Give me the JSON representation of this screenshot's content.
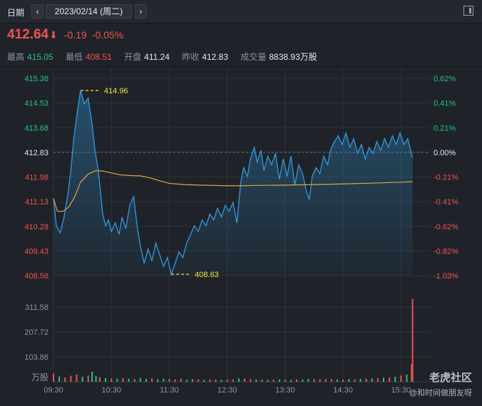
{
  "toolbar": {
    "label": "日期",
    "prev_icon": "chevron-left-icon",
    "next_icon": "chevron-right-icon",
    "date": "2023/02/14 (周二)",
    "expand_icon": "panel-expand-icon"
  },
  "quote": {
    "price": "412.64",
    "direction_icon": "arrow-down-icon",
    "change": "-0.19",
    "change_pct": "-0.05%"
  },
  "stats": [
    {
      "label": "最高",
      "value": "415.05",
      "tone": "green"
    },
    {
      "label": "最低",
      "value": "408.51",
      "tone": "red"
    },
    {
      "label": "开盘",
      "value": "411.24",
      "tone": "plain"
    },
    {
      "label": "昨收",
      "value": "412.83",
      "tone": "plain"
    },
    {
      "label": "成交量",
      "value": "8838.93万股",
      "tone": "plain"
    }
  ],
  "watermark": {
    "brand": "老虎社区",
    "slogan": "@和时间做朋友呀"
  },
  "colors": {
    "up": "#ef5350",
    "down": "#26c281",
    "price_line": "#2f9be0",
    "avg_line": "#e8a23e",
    "marker": "#f7e23a"
  },
  "chart_data": {
    "type": "line",
    "title": "",
    "x_ticks": [
      "09:30",
      "10:30",
      "11:30",
      "12:30",
      "13:30",
      "14:30",
      "15:30"
    ],
    "x_range": [
      "09:30",
      "16:00"
    ],
    "y_ticks_left": [
      "415.38",
      "414.53",
      "413.68",
      "412.83",
      "411.98",
      "411.13",
      "410.28",
      "409.43",
      "408.58"
    ],
    "y_ticks_right": [
      "0.62%",
      "0.41%",
      "0.21%",
      "0.00%",
      "-0.21%",
      "-0.41%",
      "-0.62%",
      "-0.82%",
      "-1.03%"
    ],
    "ylim": [
      408.58,
      415.38
    ],
    "prev_close": 412.83,
    "annotations": [
      {
        "label": "414.96",
        "time": "09:58",
        "value": 414.96
      },
      {
        "label": "408.63",
        "time": "11:32",
        "value": 408.63
      }
    ],
    "series": [
      {
        "role": "price",
        "points": [
          [
            "09:30",
            411.24
          ],
          [
            "09:33",
            410.3
          ],
          [
            "09:37",
            410.05
          ],
          [
            "09:41",
            410.6
          ],
          [
            "09:45",
            411.4
          ],
          [
            "09:48",
            412.2
          ],
          [
            "09:51",
            413.3
          ],
          [
            "09:55",
            414.3
          ],
          [
            "09:58",
            414.96
          ],
          [
            "10:02",
            414.5
          ],
          [
            "10:06",
            414.7
          ],
          [
            "10:10",
            413.8
          ],
          [
            "10:13",
            412.9
          ],
          [
            "10:16",
            412.3
          ],
          [
            "10:18",
            411.7
          ],
          [
            "10:21",
            410.7
          ],
          [
            "10:24",
            410.3
          ],
          [
            "10:27",
            410.5
          ],
          [
            "10:30",
            410.1
          ],
          [
            "10:34",
            410.4
          ],
          [
            "10:38",
            410.0
          ],
          [
            "10:41",
            410.6
          ],
          [
            "10:45",
            410.2
          ],
          [
            "10:49",
            411.0
          ],
          [
            "10:53",
            411.3
          ],
          [
            "10:57",
            410.2
          ],
          [
            "11:00",
            409.6
          ],
          [
            "11:04",
            409.0
          ],
          [
            "11:08",
            409.5
          ],
          [
            "11:12",
            409.1
          ],
          [
            "11:16",
            409.7
          ],
          [
            "11:20",
            409.3
          ],
          [
            "11:24",
            408.9
          ],
          [
            "11:28",
            409.2
          ],
          [
            "11:32",
            408.63
          ],
          [
            "11:36",
            409.0
          ],
          [
            "11:40",
            409.4
          ],
          [
            "11:44",
            409.2
          ],
          [
            "11:48",
            409.7
          ],
          [
            "11:52",
            410.0
          ],
          [
            "11:56",
            410.3
          ],
          [
            "12:00",
            410.1
          ],
          [
            "12:04",
            410.5
          ],
          [
            "12:08",
            410.3
          ],
          [
            "12:12",
            410.7
          ],
          [
            "12:16",
            410.5
          ],
          [
            "12:20",
            410.9
          ],
          [
            "12:24",
            410.6
          ],
          [
            "12:28",
            411.0
          ],
          [
            "12:32",
            410.8
          ],
          [
            "12:36",
            411.1
          ],
          [
            "12:40",
            410.4
          ],
          [
            "12:44",
            411.8
          ],
          [
            "12:47",
            412.3
          ],
          [
            "12:51",
            412.0
          ],
          [
            "12:54",
            412.6
          ],
          [
            "12:58",
            413.0
          ],
          [
            "13:01",
            412.5
          ],
          [
            "13:05",
            412.9
          ],
          [
            "13:08",
            412.2
          ],
          [
            "13:12",
            412.7
          ],
          [
            "13:16",
            412.4
          ],
          [
            "13:20",
            412.8
          ],
          [
            "13:24",
            411.9
          ],
          [
            "13:28",
            412.6
          ],
          [
            "13:32",
            412.0
          ],
          [
            "13:36",
            412.7
          ],
          [
            "13:40",
            411.7
          ],
          [
            "13:44",
            412.4
          ],
          [
            "13:48",
            412.1
          ],
          [
            "13:52",
            411.5
          ],
          [
            "13:55",
            411.2
          ],
          [
            "13:58",
            412.0
          ],
          [
            "14:02",
            412.3
          ],
          [
            "14:06",
            412.1
          ],
          [
            "14:10",
            412.7
          ],
          [
            "14:14",
            412.4
          ],
          [
            "14:17",
            412.9
          ],
          [
            "14:21",
            413.2
          ],
          [
            "14:25",
            413.4
          ],
          [
            "14:29",
            413.1
          ],
          [
            "14:33",
            413.5
          ],
          [
            "14:37",
            413.0
          ],
          [
            "14:41",
            413.3
          ],
          [
            "14:45",
            412.8
          ],
          [
            "14:49",
            413.1
          ],
          [
            "14:53",
            412.6
          ],
          [
            "14:57",
            413.0
          ],
          [
            "15:01",
            412.8
          ],
          [
            "15:05",
            413.2
          ],
          [
            "15:09",
            412.9
          ],
          [
            "15:13",
            413.3
          ],
          [
            "15:17",
            413.0
          ],
          [
            "15:21",
            413.4
          ],
          [
            "15:25",
            413.1
          ],
          [
            "15:29",
            413.5
          ],
          [
            "15:33",
            413.1
          ],
          [
            "15:37",
            413.3
          ],
          [
            "15:40",
            412.9
          ],
          [
            "15:42",
            412.64
          ]
        ]
      },
      {
        "role": "average",
        "points": [
          [
            "09:30",
            411.24
          ],
          [
            "09:34",
            410.8
          ],
          [
            "09:40",
            410.8
          ],
          [
            "09:46",
            410.95
          ],
          [
            "09:52",
            411.3
          ],
          [
            "09:58",
            411.8
          ],
          [
            "10:06",
            412.08
          ],
          [
            "10:14",
            412.2
          ],
          [
            "10:22",
            412.18
          ],
          [
            "10:30",
            412.12
          ],
          [
            "10:40",
            412.05
          ],
          [
            "10:50",
            412.03
          ],
          [
            "11:00",
            412.02
          ],
          [
            "11:10",
            411.95
          ],
          [
            "11:20",
            411.85
          ],
          [
            "11:30",
            411.76
          ],
          [
            "11:45",
            411.72
          ],
          [
            "12:00",
            411.7
          ],
          [
            "12:15",
            411.69
          ],
          [
            "12:30",
            411.68
          ],
          [
            "12:45",
            411.68
          ],
          [
            "13:00",
            411.69
          ],
          [
            "13:30",
            411.7
          ],
          [
            "14:00",
            411.72
          ],
          [
            "14:30",
            411.74
          ],
          [
            "15:00",
            411.77
          ],
          [
            "15:30",
            411.8
          ],
          [
            "15:42",
            411.82
          ]
        ]
      }
    ],
    "volume": {
      "ylabel": "万股",
      "ticks": [
        "311.58",
        "207.72",
        "103.86"
      ],
      "ylim": [
        0,
        350
      ],
      "bars_note": "per-minute volume",
      "bars": [
        {
          "time": "09:30",
          "value": 34,
          "dir": "up"
        },
        {
          "time": "09:36",
          "value": 22,
          "dir": "down"
        },
        {
          "time": "09:42",
          "value": 18,
          "dir": "up"
        },
        {
          "time": "09:48",
          "value": 25,
          "dir": "up"
        },
        {
          "time": "09:54",
          "value": 30,
          "dir": "up"
        },
        {
          "time": "10:00",
          "value": 21,
          "dir": "down"
        },
        {
          "time": "10:06",
          "value": 26,
          "dir": "up"
        },
        {
          "time": "10:10",
          "value": 42,
          "dir": "down"
        },
        {
          "time": "10:14",
          "value": 24,
          "dir": "down"
        },
        {
          "time": "10:18",
          "value": 19,
          "dir": "up"
        },
        {
          "time": "10:24",
          "value": 16,
          "dir": "down"
        },
        {
          "time": "10:30",
          "value": 14,
          "dir": "up"
        },
        {
          "time": "10:36",
          "value": 12,
          "dir": "down"
        },
        {
          "time": "10:42",
          "value": 15,
          "dir": "up"
        },
        {
          "time": "10:48",
          "value": 13,
          "dir": "down"
        },
        {
          "time": "10:54",
          "value": 11,
          "dir": "up"
        },
        {
          "time": "11:00",
          "value": 16,
          "dir": "down"
        },
        {
          "time": "11:06",
          "value": 12,
          "dir": "down"
        },
        {
          "time": "11:12",
          "value": 14,
          "dir": "up"
        },
        {
          "time": "11:18",
          "value": 11,
          "dir": "down"
        },
        {
          "time": "11:24",
          "value": 13,
          "dir": "down"
        },
        {
          "time": "11:30",
          "value": 12,
          "dir": "up"
        },
        {
          "time": "11:36",
          "value": 10,
          "dir": "up"
        },
        {
          "time": "11:42",
          "value": 12,
          "dir": "up"
        },
        {
          "time": "11:48",
          "value": 9,
          "dir": "down"
        },
        {
          "time": "11:54",
          "value": 11,
          "dir": "up"
        },
        {
          "time": "12:00",
          "value": 10,
          "dir": "up"
        },
        {
          "time": "12:06",
          "value": 8,
          "dir": "down"
        },
        {
          "time": "12:12",
          "value": 10,
          "dir": "up"
        },
        {
          "time": "12:18",
          "value": 9,
          "dir": "up"
        },
        {
          "time": "12:24",
          "value": 8,
          "dir": "down"
        },
        {
          "time": "12:30",
          "value": 9,
          "dir": "up"
        },
        {
          "time": "12:36",
          "value": 10,
          "dir": "up"
        },
        {
          "time": "12:42",
          "value": 14,
          "dir": "down"
        },
        {
          "time": "12:48",
          "value": 13,
          "dir": "up"
        },
        {
          "time": "12:54",
          "value": 11,
          "dir": "up"
        },
        {
          "time": "13:00",
          "value": 10,
          "dir": "down"
        },
        {
          "time": "13:06",
          "value": 9,
          "dir": "up"
        },
        {
          "time": "13:12",
          "value": 8,
          "dir": "down"
        },
        {
          "time": "13:18",
          "value": 9,
          "dir": "up"
        },
        {
          "time": "13:24",
          "value": 10,
          "dir": "down"
        },
        {
          "time": "13:30",
          "value": 9,
          "dir": "up"
        },
        {
          "time": "13:36",
          "value": 8,
          "dir": "down"
        },
        {
          "time": "13:42",
          "value": 10,
          "dir": "up"
        },
        {
          "time": "13:48",
          "value": 9,
          "dir": "down"
        },
        {
          "time": "13:54",
          "value": 12,
          "dir": "down"
        },
        {
          "time": "14:00",
          "value": 11,
          "dir": "up"
        },
        {
          "time": "14:06",
          "value": 10,
          "dir": "up"
        },
        {
          "time": "14:12",
          "value": 12,
          "dir": "up"
        },
        {
          "time": "14:18",
          "value": 11,
          "dir": "up"
        },
        {
          "time": "14:24",
          "value": 10,
          "dir": "down"
        },
        {
          "time": "14:30",
          "value": 9,
          "dir": "up"
        },
        {
          "time": "14:36",
          "value": 11,
          "dir": "down"
        },
        {
          "time": "14:42",
          "value": 10,
          "dir": "up"
        },
        {
          "time": "14:48",
          "value": 12,
          "dir": "down"
        },
        {
          "time": "14:54",
          "value": 13,
          "dir": "up"
        },
        {
          "time": "15:00",
          "value": 14,
          "dir": "down"
        },
        {
          "time": "15:06",
          "value": 15,
          "dir": "up"
        },
        {
          "time": "15:12",
          "value": 17,
          "dir": "down"
        },
        {
          "time": "15:18",
          "value": 18,
          "dir": "up"
        },
        {
          "time": "15:24",
          "value": 21,
          "dir": "down"
        },
        {
          "time": "15:30",
          "value": 26,
          "dir": "up"
        },
        {
          "time": "15:36",
          "value": 30,
          "dir": "down"
        },
        {
          "time": "15:41",
          "value": 72,
          "dir": "up"
        },
        {
          "time": "15:42",
          "value": 345,
          "dir": "up"
        }
      ]
    }
  }
}
